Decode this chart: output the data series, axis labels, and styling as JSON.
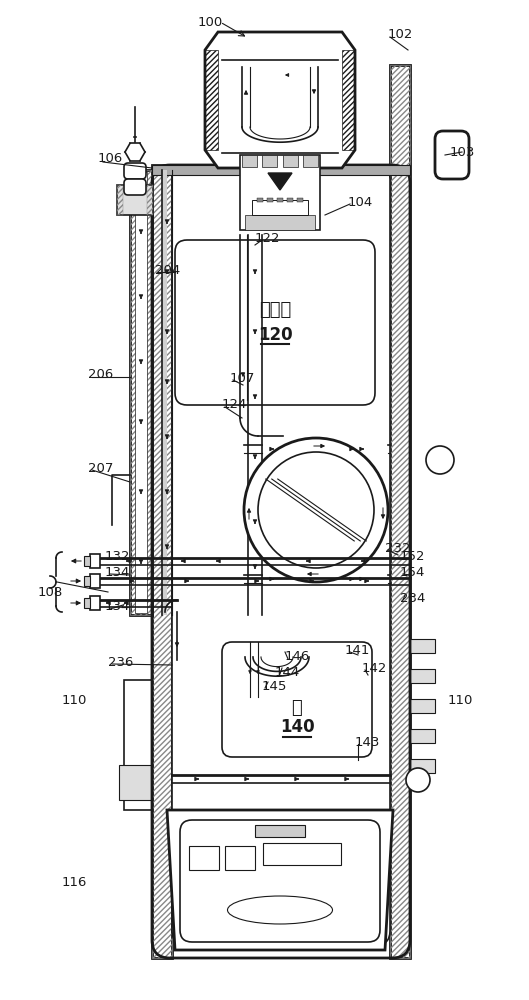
{
  "background": "#ffffff",
  "line_color": "#1a1a1a",
  "label_color": "#1a1a1a",
  "detector_text": "检测器",
  "detector_label": "120",
  "valve_text": "阀",
  "valve_label": "140",
  "labels": [
    [
      "100",
      198,
      22,
      "left"
    ],
    [
      "102",
      388,
      35,
      "left"
    ],
    [
      "103",
      450,
      152,
      "left"
    ],
    [
      "104",
      348,
      202,
      "left"
    ],
    [
      "106",
      98,
      158,
      "left"
    ],
    [
      "107",
      230,
      378,
      "left"
    ],
    [
      "108",
      38,
      592,
      "left"
    ],
    [
      "110",
      62,
      700,
      "left"
    ],
    [
      "110",
      448,
      700,
      "left"
    ],
    [
      "116",
      62,
      882,
      "left"
    ],
    [
      "122",
      255,
      238,
      "left"
    ],
    [
      "124",
      222,
      405,
      "left"
    ],
    [
      "132",
      105,
      556,
      "left"
    ],
    [
      "134",
      105,
      572,
      "left"
    ],
    [
      "134",
      105,
      607,
      "left"
    ],
    [
      "141",
      345,
      650,
      "left"
    ],
    [
      "142",
      362,
      668,
      "left"
    ],
    [
      "143",
      355,
      742,
      "left"
    ],
    [
      "144",
      275,
      672,
      "left"
    ],
    [
      "145",
      262,
      686,
      "left"
    ],
    [
      "146",
      285,
      657,
      "left"
    ],
    [
      "152",
      400,
      556,
      "left"
    ],
    [
      "154",
      400,
      572,
      "left"
    ],
    [
      "204",
      155,
      270,
      "left"
    ],
    [
      "206",
      88,
      375,
      "left"
    ],
    [
      "207",
      88,
      468,
      "left"
    ],
    [
      "232",
      385,
      548,
      "left"
    ],
    [
      "234",
      400,
      598,
      "left"
    ],
    [
      "236",
      108,
      662,
      "left"
    ]
  ]
}
